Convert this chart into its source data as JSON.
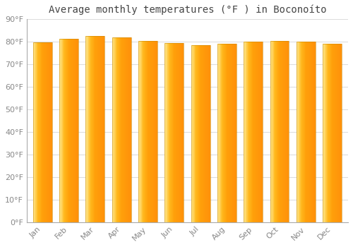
{
  "title": "Average monthly temperatures (°F ) in Boconoíto",
  "months": [
    "Jan",
    "Feb",
    "Mar",
    "Apr",
    "May",
    "Jun",
    "Jul",
    "Aug",
    "Sep",
    "Oct",
    "Nov",
    "Dec"
  ],
  "values": [
    79.5,
    81.3,
    82.4,
    81.7,
    80.1,
    79.3,
    78.4,
    79.1,
    79.8,
    80.2,
    79.9,
    79.0
  ],
  "ylim": [
    0,
    90
  ],
  "yticks": [
    0,
    10,
    20,
    30,
    40,
    50,
    60,
    70,
    80,
    90
  ],
  "ytick_labels": [
    "0°F",
    "10°F",
    "20°F",
    "30°F",
    "40°F",
    "50°F",
    "60°F",
    "70°F",
    "80°F",
    "90°F"
  ],
  "background_color": "#FFFFFF",
  "grid_color": "#DDDDDD",
  "bar_color_left": "#FFE580",
  "bar_color_center": "#FFD040",
  "bar_color_right": "#FFA500",
  "bar_edge_color": "#CC8800",
  "title_fontsize": 10,
  "tick_fontsize": 8,
  "tick_color": "#888888",
  "title_color": "#444444"
}
